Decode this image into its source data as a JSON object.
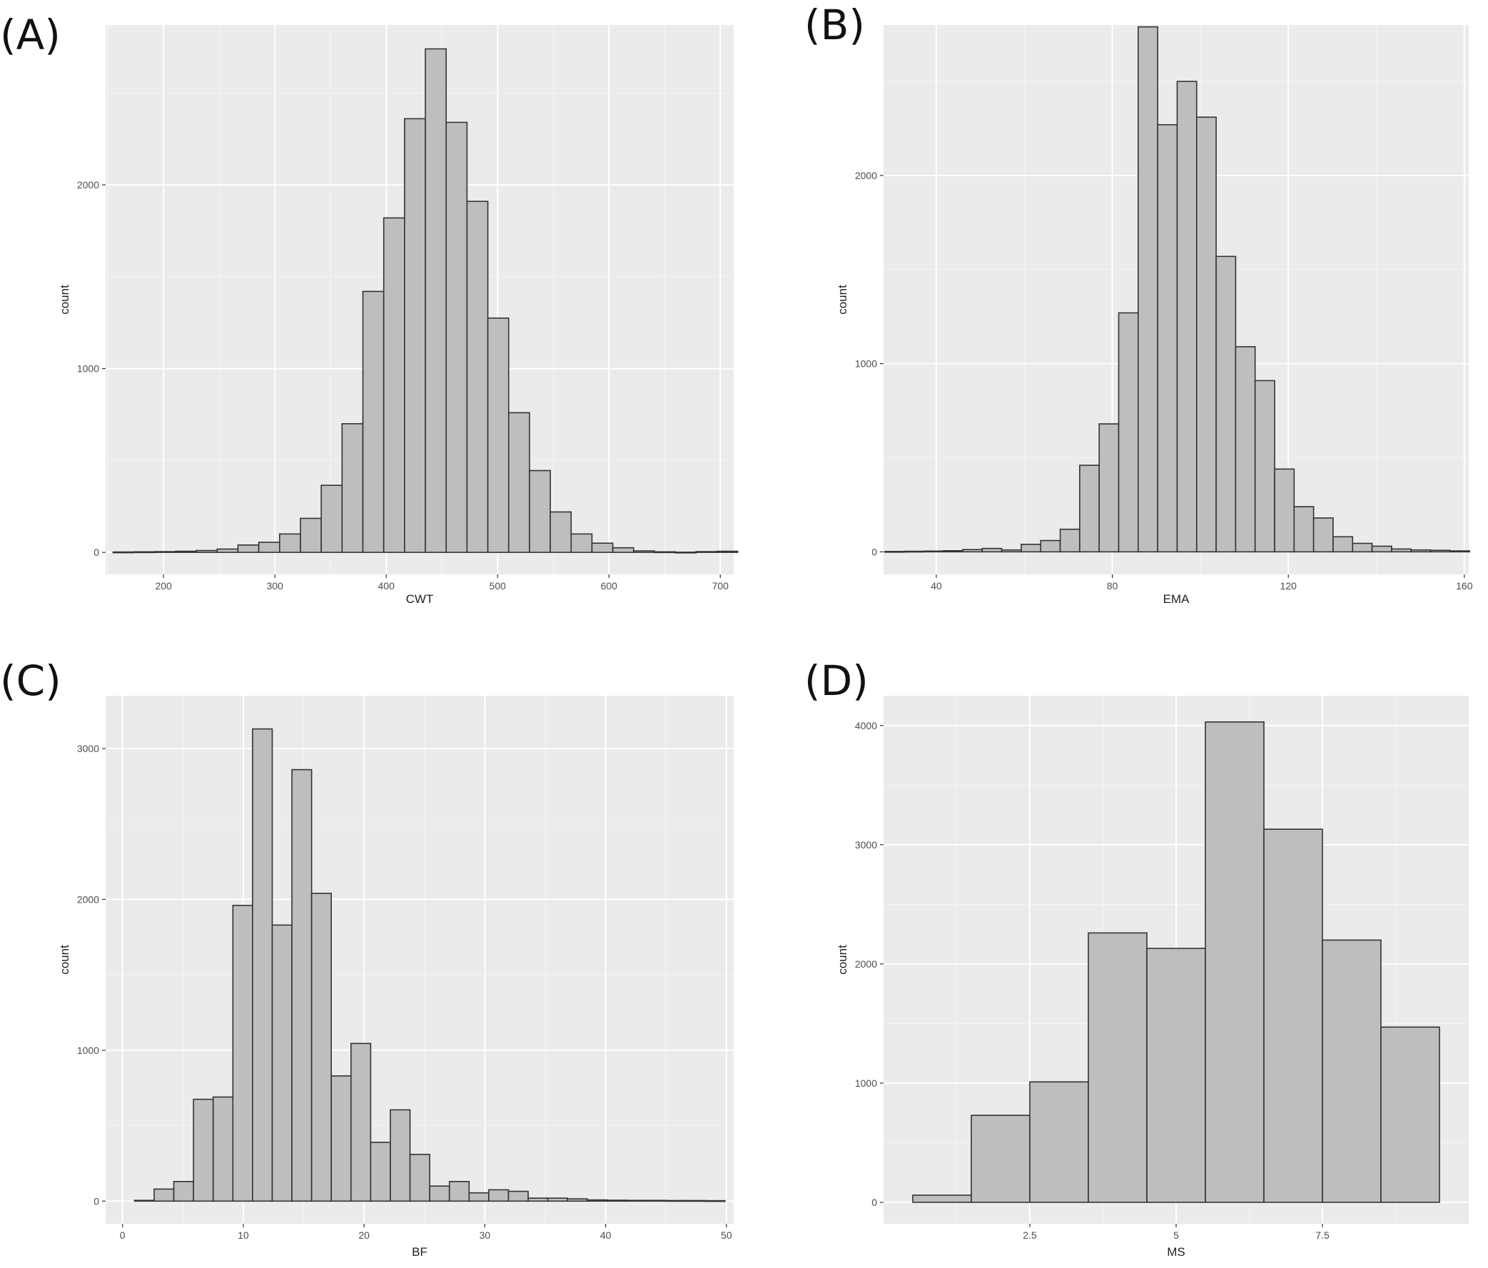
{
  "panels": [
    {
      "label": "(A)",
      "chart_data": {
        "type": "bar",
        "subtype": "histogram",
        "xlabel": "CWT",
        "ylabel": "count",
        "xlim": [
          148,
          712
        ],
        "ylim": [
          -120,
          2870
        ],
        "bin_width": 18.7,
        "bin_centers": [
          164,
          182.7,
          201.4,
          220.1,
          238.8,
          257.5,
          276.2,
          294.9,
          313.6,
          332.3,
          351,
          369.7,
          388.4,
          407.1,
          425.8,
          444.5,
          463.2,
          481.9,
          500.6,
          519.3,
          538,
          556.7,
          575.4,
          594.1,
          612.8,
          631.5,
          650.2,
          668.9,
          687.6,
          706.3
        ],
        "values": [
          2,
          3,
          4,
          6,
          10,
          18,
          40,
          55,
          100,
          185,
          365,
          700,
          1420,
          1820,
          2360,
          2740,
          2340,
          1910,
          1275,
          760,
          445,
          220,
          100,
          50,
          25,
          8,
          3,
          1,
          4,
          6
        ],
        "x_ticks": [
          200,
          300,
          400,
          500,
          600,
          700
        ],
        "y_ticks": [
          0,
          1000,
          2000
        ],
        "grid": true
      }
    },
    {
      "label": "(B)",
      "chart_data": {
        "type": "bar",
        "subtype": "histogram",
        "xlabel": "EMA",
        "ylabel": "count",
        "xlim": [
          28,
          161
        ],
        "ylim": [
          -120,
          2800
        ],
        "bin_width": 4.43,
        "bin_centers": [
          30.5,
          34.93,
          39.36,
          43.79,
          48.22,
          52.65,
          57.08,
          61.51,
          65.94,
          70.37,
          74.8,
          79.23,
          83.66,
          88.09,
          92.52,
          96.95,
          101.38,
          105.81,
          110.24,
          114.67,
          119.1,
          123.53,
          127.96,
          132.39,
          136.82,
          141.25,
          145.68,
          150.11,
          154.54,
          158.97
        ],
        "values": [
          2,
          3,
          4,
          6,
          12,
          18,
          10,
          40,
          60,
          120,
          460,
          680,
          1270,
          2790,
          2270,
          2500,
          2310,
          1570,
          1090,
          910,
          440,
          240,
          180,
          80,
          45,
          30,
          15,
          10,
          8,
          5
        ],
        "x_ticks": [
          40,
          80,
          120,
          160
        ],
        "y_ticks": [
          0,
          1000,
          2000
        ],
        "grid": true
      }
    },
    {
      "label": "(C)",
      "chart_data": {
        "type": "bar",
        "subtype": "histogram",
        "xlabel": "BF",
        "ylabel": "count",
        "xlim": [
          -1.4,
          50.6
        ],
        "ylim": [
          -150,
          3350
        ],
        "bin_width": 1.63,
        "bin_centers": [
          1.8,
          3.43,
          5.06,
          6.69,
          8.32,
          9.95,
          11.58,
          13.21,
          14.84,
          16.47,
          18.1,
          19.73,
          21.36,
          22.99,
          24.62,
          26.25,
          27.88,
          29.51,
          31.14,
          32.77,
          34.4,
          36.03,
          37.66,
          39.29,
          40.92,
          42.55,
          44.18,
          45.81,
          47.44,
          49.07
        ],
        "values": [
          5,
          80,
          130,
          675,
          690,
          1960,
          3130,
          1830,
          2860,
          2040,
          830,
          1045,
          390,
          605,
          310,
          100,
          130,
          55,
          75,
          65,
          20,
          20,
          15,
          8,
          6,
          5,
          5,
          4,
          4,
          3
        ],
        "x_ticks": [
          0,
          10,
          20,
          30,
          40,
          50
        ],
        "y_ticks": [
          0,
          1000,
          2000,
          3000
        ],
        "grid": true
      }
    },
    {
      "label": "(D)",
      "chart_data": {
        "type": "bar",
        "subtype": "histogram",
        "xlabel": "MS",
        "ylabel": "count",
        "xlim": [
          0,
          10
        ],
        "ylim": [
          -180,
          4250
        ],
        "bin_width": 1,
        "bin_centers": [
          1,
          2,
          3,
          4,
          5,
          6,
          7,
          8,
          9
        ],
        "values": [
          60,
          730,
          1010,
          2260,
          2130,
          4030,
          3130,
          2200,
          1470
        ],
        "x_ticks": [
          2.5,
          5.0,
          7.5
        ],
        "y_ticks": [
          0,
          1000,
          2000,
          3000,
          4000
        ],
        "grid": true
      }
    }
  ]
}
